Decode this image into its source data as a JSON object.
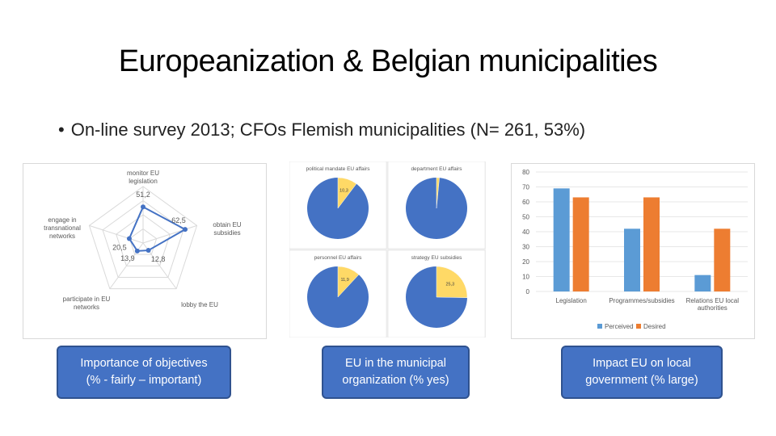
{
  "slide": {
    "title": "Europeanization & Belgian municipalities",
    "bullet": "On-line survey 2013; CFOs Flemish municipalities (N= 261, 53%)"
  },
  "captions": [
    {
      "line1": "Importance of objectives",
      "line2": "(% - fairly – important)"
    },
    {
      "line1": "EU in the municipal",
      "line2": "organization (% yes)"
    },
    {
      "line1": "Impact EU on local",
      "line2": "government (% large)"
    }
  ],
  "chart_data": [
    {
      "type": "radar",
      "axes": [
        {
          "label_lines": [
            "monitor EU",
            "legislation"
          ],
          "value": 51.2,
          "value_label": "51,2"
        },
        {
          "label_lines": [
            "obtain EU",
            "subsidies"
          ],
          "value": 62.5,
          "value_label": "62,5"
        },
        {
          "label_lines": [
            "lobby the EU"
          ],
          "value": 12.8,
          "value_label": "12,8"
        },
        {
          "label_lines": [
            "participate in EU",
            "networks"
          ],
          "value": 13.9,
          "value_label": "13,9"
        },
        {
          "label_lines": [
            "engage in",
            "transnational",
            "networks"
          ],
          "value": 20.5,
          "value_label": "20,5"
        }
      ],
      "rmax": 80,
      "rings": 4,
      "line_color": "#4472c4"
    },
    {
      "type": "pie",
      "panels": [
        {
          "title": "political mandate EU affairs",
          "value": 10.3,
          "value_label": "10,3"
        },
        {
          "title": "department EU affairs",
          "value": 1.5,
          "value_label": ""
        },
        {
          "title": "personnel EU affairs",
          "value": 11.9,
          "value_label": "11,9"
        },
        {
          "title": "strategy EU subsidies",
          "value": 25.3,
          "value_label": "25,3"
        }
      ],
      "colors": {
        "yes": "#ffd966",
        "no": "#4472c4"
      }
    },
    {
      "type": "bar",
      "categories": [
        [
          "Legislation"
        ],
        [
          "Programmes/subsidies"
        ],
        [
          "Relations EU local",
          "authorities"
        ]
      ],
      "series": [
        {
          "name": "Perceived",
          "color": "#5b9bd5",
          "values": [
            69,
            42,
            11
          ]
        },
        {
          "name": "Desired",
          "color": "#ed7d31",
          "values": [
            63,
            63,
            42
          ]
        }
      ],
      "ylim": [
        0,
        80
      ],
      "yticks": [
        0,
        10,
        20,
        30,
        40,
        50,
        60,
        70,
        80
      ],
      "legend": "bottom"
    }
  ]
}
